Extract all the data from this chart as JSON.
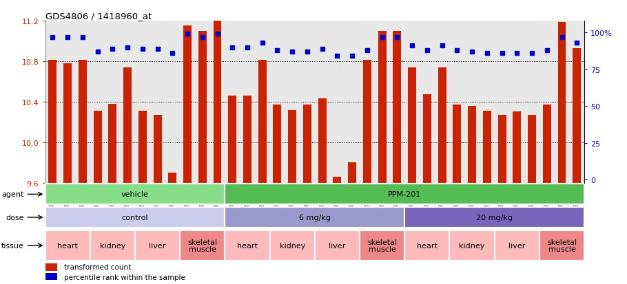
{
  "title": "GDS4806 / 1418960_at",
  "samples": [
    "GSM783280",
    "GSM783281",
    "GSM783282",
    "GSM783289",
    "GSM783290",
    "GSM783291",
    "GSM783298",
    "GSM783299",
    "GSM783300",
    "GSM783307",
    "GSM783308",
    "GSM783309",
    "GSM783283",
    "GSM783284",
    "GSM783285",
    "GSM783292",
    "GSM783293",
    "GSM783294",
    "GSM783301",
    "GSM783302",
    "GSM783303",
    "GSM783310",
    "GSM783311",
    "GSM783312",
    "GSM783286",
    "GSM783287",
    "GSM783288",
    "GSM783295",
    "GSM783296",
    "GSM783297",
    "GSM783304",
    "GSM783305",
    "GSM783306",
    "GSM783313",
    "GSM783314",
    "GSM783315"
  ],
  "red_values": [
    10.81,
    10.78,
    10.81,
    10.31,
    10.38,
    10.74,
    10.31,
    10.27,
    9.7,
    11.15,
    11.1,
    11.2,
    10.46,
    10.46,
    10.81,
    10.37,
    10.32,
    10.37,
    10.43,
    9.66,
    9.8,
    10.81,
    11.1,
    11.1,
    10.74,
    10.47,
    10.74,
    10.37,
    10.36,
    10.31,
    10.27,
    10.3,
    10.27,
    10.37,
    11.19,
    10.93
  ],
  "blue_values": [
    97,
    97,
    97,
    87,
    89,
    90,
    89,
    89,
    86,
    99,
    97,
    99,
    90,
    90,
    93,
    88,
    87,
    87,
    89,
    84,
    84,
    88,
    97,
    97,
    91,
    88,
    91,
    88,
    87,
    86,
    86,
    86,
    86,
    88,
    97,
    93
  ],
  "ymin": 9.6,
  "ymax": 11.2,
  "yticks_left": [
    9.6,
    10.0,
    10.4,
    10.8,
    11.2
  ],
  "yticks_right": [
    0,
    25,
    50,
    75,
    100
  ],
  "bar_color": "#CC2200",
  "dot_color": "#0000CC",
  "agent_groups": [
    {
      "label": "vehicle",
      "start": 0,
      "end": 12,
      "color": "#88DD88"
    },
    {
      "label": "PPM-201",
      "start": 12,
      "end": 36,
      "color": "#55BB55"
    }
  ],
  "dose_groups": [
    {
      "label": "control",
      "start": 0,
      "end": 12,
      "color": "#CCCCEE"
    },
    {
      "label": "6 mg/kg",
      "start": 12,
      "end": 24,
      "color": "#9999CC"
    },
    {
      "label": "20 mg/kg",
      "start": 24,
      "end": 36,
      "color": "#7766BB"
    }
  ],
  "tissue_groups": [
    {
      "label": "heart",
      "start": 0,
      "end": 3,
      "color": "#FFBBBB"
    },
    {
      "label": "kidney",
      "start": 3,
      "end": 6,
      "color": "#FFBBBB"
    },
    {
      "label": "liver",
      "start": 6,
      "end": 9,
      "color": "#FFBBBB"
    },
    {
      "label": "skeletal\nmuscle",
      "start": 9,
      "end": 12,
      "color": "#EE8888"
    },
    {
      "label": "heart",
      "start": 12,
      "end": 15,
      "color": "#FFBBBB"
    },
    {
      "label": "kidney",
      "start": 15,
      "end": 18,
      "color": "#FFBBBB"
    },
    {
      "label": "liver",
      "start": 18,
      "end": 21,
      "color": "#FFBBBB"
    },
    {
      "label": "skeletal\nmuscle",
      "start": 21,
      "end": 24,
      "color": "#EE8888"
    },
    {
      "label": "heart",
      "start": 24,
      "end": 27,
      "color": "#FFBBBB"
    },
    {
      "label": "kidney",
      "start": 27,
      "end": 30,
      "color": "#FFBBBB"
    },
    {
      "label": "liver",
      "start": 30,
      "end": 33,
      "color": "#FFBBBB"
    },
    {
      "label": "skeletal\nmuscle",
      "start": 33,
      "end": 36,
      "color": "#EE8888"
    }
  ],
  "col_bg": "#E8E8E8",
  "legend_items": [
    {
      "color": "#CC2200",
      "label": "transformed count"
    },
    {
      "color": "#0000CC",
      "label": "percentile rank within the sample"
    }
  ]
}
